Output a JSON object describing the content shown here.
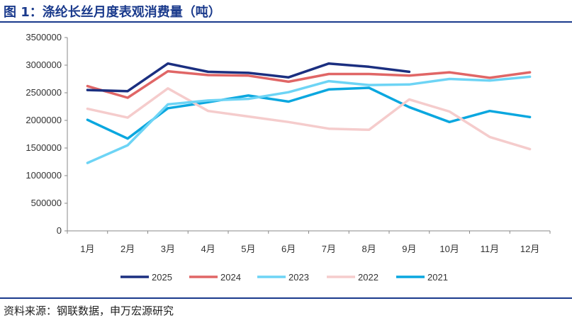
{
  "title": "图 1：涤纶长丝月度表观消费量（吨）",
  "source": "资料来源：钢联数据，申万宏源研究",
  "chart_data": {
    "type": "line",
    "categories": [
      "1月",
      "2月",
      "3月",
      "4月",
      "5月",
      "6月",
      "7月",
      "8月",
      "9月",
      "10月",
      "11月",
      "12月"
    ],
    "ylim": [
      0,
      3500000
    ],
    "yticks": [
      0,
      500000,
      1000000,
      1500000,
      2000000,
      2500000,
      3000000,
      3500000
    ],
    "ytick_labels": [
      "0",
      "500000",
      "1000000",
      "1500000",
      "2000000",
      "2500000",
      "3000000",
      "3500000"
    ],
    "xlabel": "",
    "ylabel": "",
    "grid": false,
    "legend_position": "bottom",
    "series": [
      {
        "name": "2025",
        "color": "#1b2f80",
        "values": [
          2550000,
          2530000,
          3030000,
          2880000,
          2860000,
          2780000,
          3030000,
          2970000,
          2880000,
          null,
          null,
          null
        ]
      },
      {
        "name": "2024",
        "color": "#e06666",
        "values": [
          2620000,
          2410000,
          2890000,
          2820000,
          2810000,
          2700000,
          2840000,
          2840000,
          2810000,
          2870000,
          2770000,
          2870000
        ]
      },
      {
        "name": "2023",
        "color": "#6dd4f5",
        "values": [
          1230000,
          1550000,
          2290000,
          2360000,
          2390000,
          2510000,
          2710000,
          2640000,
          2650000,
          2750000,
          2720000,
          2790000
        ]
      },
      {
        "name": "2022",
        "color": "#f5cccc",
        "values": [
          2210000,
          2050000,
          2580000,
          2170000,
          2070000,
          1970000,
          1850000,
          1830000,
          2380000,
          2160000,
          1700000,
          1480000
        ]
      },
      {
        "name": "2021",
        "color": "#0aa7df",
        "values": [
          2010000,
          1670000,
          2220000,
          2330000,
          2450000,
          2340000,
          2560000,
          2590000,
          2240000,
          1970000,
          2170000,
          2060000
        ]
      }
    ]
  }
}
